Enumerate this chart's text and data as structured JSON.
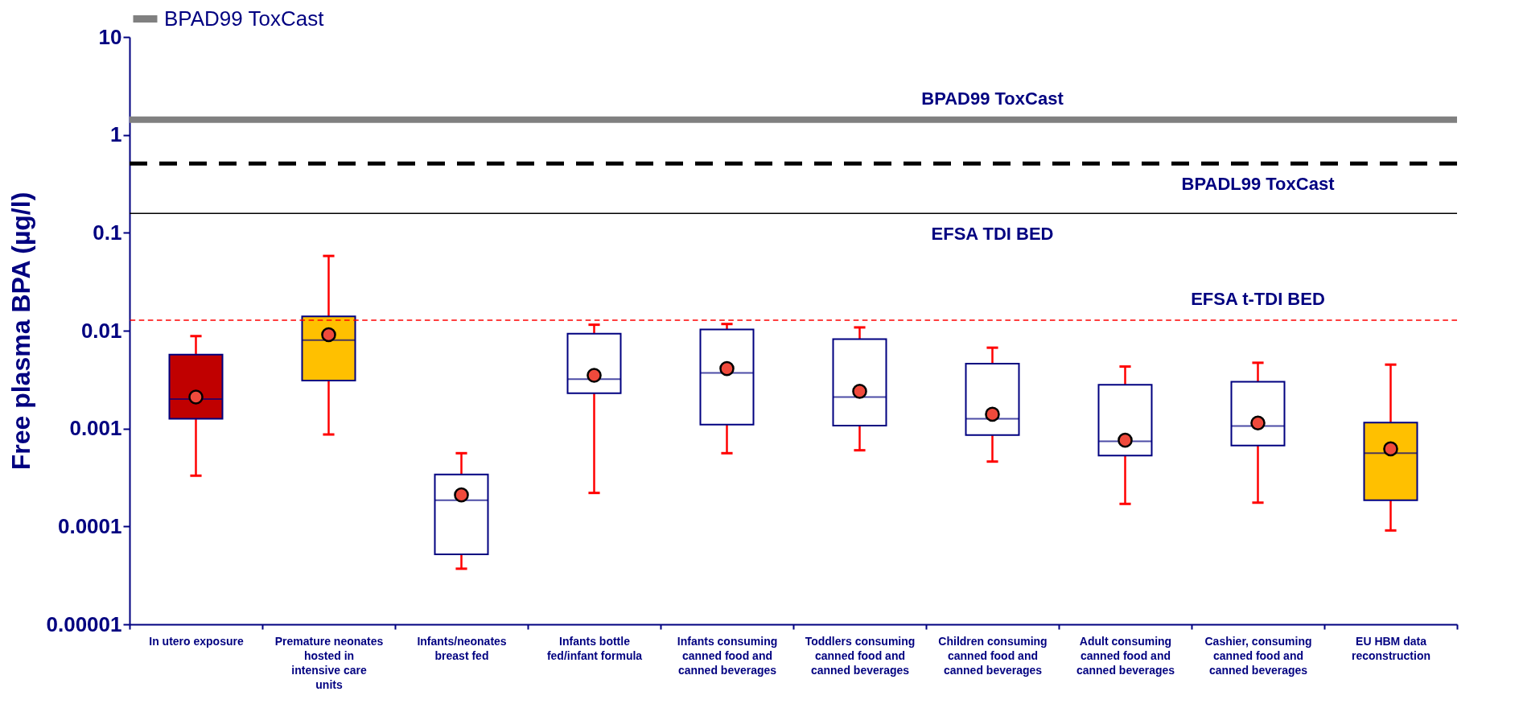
{
  "chart_data": {
    "type": "box",
    "ylabel": "Free plasma BPA (µg/l)",
    "categories": [
      "In utero exposure",
      "Premature neonates hosted in intensive care units",
      "Infants/neonates breast fed",
      "Infants bottle fed/infant formula",
      "Infants consuming canned food and canned beverages",
      "Toddlers consuming canned food and canned beverages",
      "Children consuming canned food and canned beverages",
      "Adult consuming canned food and canned beverages",
      "Cashier, consuming canned food and canned beverages",
      "EU HBM data reconstruction"
    ],
    "boxes": [
      {
        "low": 0.00033,
        "q1": 0.00126,
        "median": 0.002,
        "q3": 0.0057,
        "high": 0.0088,
        "mean": 0.0021
      },
      {
        "low": 0.00087,
        "q1": 0.0031,
        "median": 0.008,
        "q3": 0.014,
        "high": 0.058,
        "mean": 0.0091
      },
      {
        "low": 3.7e-05,
        "q1": 5.2e-05,
        "median": 0.000185,
        "q3": 0.00034,
        "high": 0.00056,
        "mean": 0.00021
      },
      {
        "low": 0.00022,
        "q1": 0.0023,
        "median": 0.0032,
        "q3": 0.0093,
        "high": 0.0115,
        "mean": 0.0035
      },
      {
        "low": 0.00056,
        "q1": 0.0011,
        "median": 0.0037,
        "q3": 0.0103,
        "high": 0.0117,
        "mean": 0.0041
      },
      {
        "low": 0.0006,
        "q1": 0.00107,
        "median": 0.0021,
        "q3": 0.0082,
        "high": 0.0108,
        "mean": 0.0024
      },
      {
        "low": 0.00046,
        "q1": 0.00086,
        "median": 0.00126,
        "q3": 0.0046,
        "high": 0.0067,
        "mean": 0.0014
      },
      {
        "low": 0.00017,
        "q1": 0.00053,
        "median": 0.00074,
        "q3": 0.0028,
        "high": 0.0043,
        "mean": 0.00076
      },
      {
        "low": 0.000175,
        "q1": 0.00067,
        "median": 0.00106,
        "q3": 0.003,
        "high": 0.0047,
        "mean": 0.00114
      },
      {
        "low": 9.1e-05,
        "q1": 0.000185,
        "median": 0.00056,
        "q3": 0.00115,
        "high": 0.0045,
        "mean": 0.00062
      }
    ],
    "colors": [
      "#c00000",
      "#ffc000",
      "#ffffff",
      "#ffffff",
      "#ffffff",
      "#ffffff",
      "#ffffff",
      "#ffffff",
      "#ffffff",
      "#ffc000"
    ],
    "log": true,
    "ylim": [
      1e-05,
      10
    ],
    "yticks": [
      {
        "value": 1e-05,
        "label": "0.00001"
      },
      0.0001,
      0.001,
      0.01,
      0.1,
      1,
      10
    ],
    "ref_lines": [
      {
        "axis": "y",
        "value": 1.43,
        "label": "BPAD99 ToxCast",
        "color": "#808080",
        "line_style": "solid"
      },
      {
        "axis": "y",
        "value": 0.51,
        "label": "BPADL99 ToxCast",
        "color": "#000000",
        "line_style": "dashed"
      },
      {
        "axis": "y",
        "value": 0.158,
        "label": "EFSA TDI BED",
        "color": "#000000",
        "line_style": "solid"
      },
      {
        "axis": "y",
        "value": 0.0128,
        "label": "EFSA t-TDI BED",
        "color": "#ff0000",
        "line_style": "dashed"
      }
    ],
    "legend": "top",
    "grid": false
  }
}
